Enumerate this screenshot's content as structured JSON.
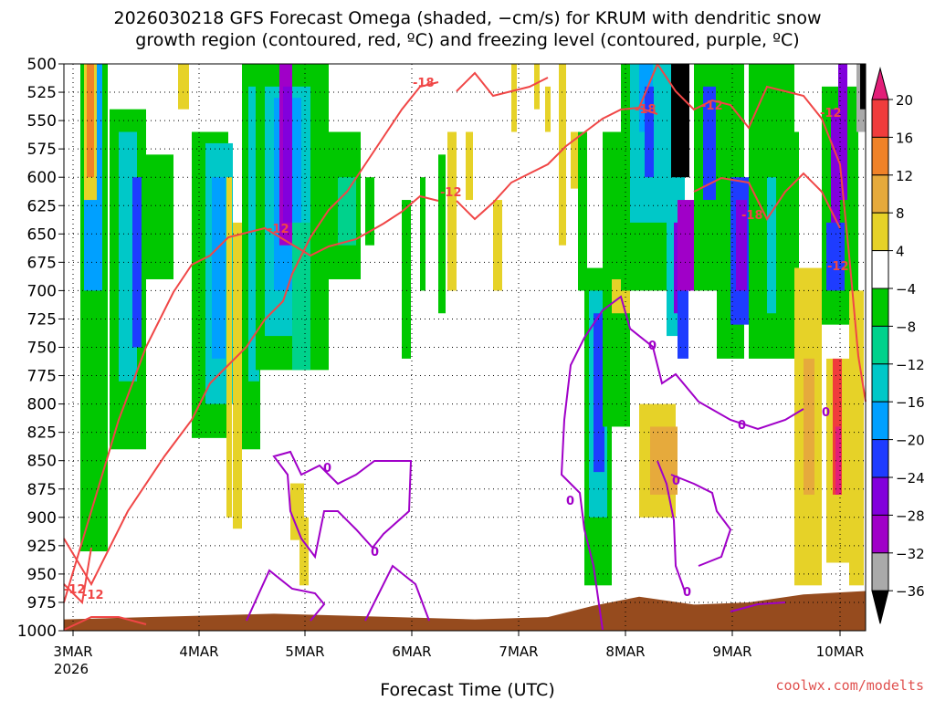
{
  "title_line1": "2026030218 GFS Forecast Omega (shaded, −cm/s) for KRUM with dendritic snow",
  "title_line2": "growth region (contoured, red, ºC) and freezing level (contoured, purple, ºC)",
  "xlabel": "Forecast Time (UTC)",
  "credit": "coolwx.com/modelts",
  "chart_data": {
    "type": "heatmap",
    "y_axis": {
      "label": "",
      "ticks": [
        500,
        525,
        550,
        575,
        600,
        625,
        650,
        675,
        700,
        725,
        750,
        775,
        800,
        825,
        850,
        875,
        900,
        925,
        950,
        975,
        1000
      ],
      "range": [
        500,
        1000
      ],
      "inverted": false
    },
    "x_axis": {
      "ticks": [
        "3MAR",
        "4MAR",
        "5MAR",
        "6MAR",
        "7MAR",
        "8MAR",
        "9MAR",
        "10MAR"
      ],
      "year_label": "2026"
    },
    "grid": true,
    "colorbar": {
      "tick_labels": [
        "20",
        "16",
        "12",
        "8",
        "4",
        "−4",
        "−8",
        "−12",
        "−16",
        "−20",
        "−24",
        "−28",
        "−32",
        "−36"
      ],
      "colors": [
        "#e21e78",
        "#f03c3c",
        "#f08228",
        "#e6aa3c",
        "#e6d228",
        "#ffffff",
        "#00c800",
        "#00d28c",
        "#00c8c8",
        "#00a0ff",
        "#1e3cff",
        "#8200dc",
        "#a000c8",
        "#aaaaaa",
        "#000000"
      ]
    },
    "contours": [
      {
        "series": "dendritic",
        "color": "#f04646",
        "labels": [
          "-12",
          "-18",
          "-12",
          "-12",
          "-18",
          "-12",
          "-12",
          "-18",
          "-12",
          "-12"
        ]
      },
      {
        "series": "freezing",
        "color": "#a000c8",
        "labels": [
          "0",
          "0",
          "0",
          "0",
          "0",
          "0",
          "0",
          "0"
        ]
      }
    ],
    "ground_color": "#964b1e"
  }
}
